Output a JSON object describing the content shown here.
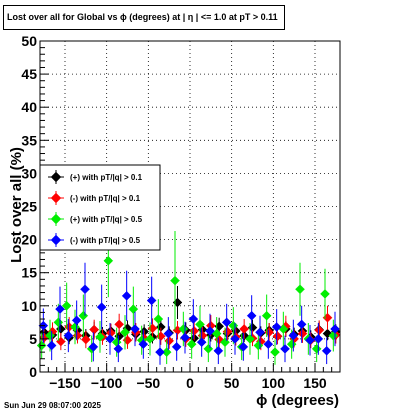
{
  "title": "Lost over all for Global vs ϕ (degrees) at |  η  | <= 1.0 at pT > 0.11",
  "date_stamp": "Sun Jun 29 08:07:00 2025",
  "colors": {
    "series_pos_01": "#000000",
    "series_neg_01": "#ff0000",
    "series_pos_05": "#00ee00",
    "series_neg_05": "#0000ff"
  },
  "chart_data": {
    "type": "scatter",
    "title": "Lost over all for Global vs ϕ (degrees) at |  η  | <= 1.0 at pT > 0.11",
    "xlabel": "ϕ (degrees)",
    "ylabel": "Lost over all (%)",
    "xlim": [
      -180,
      180
    ],
    "ylim": [
      0,
      50
    ],
    "grid": true,
    "legend_position": "middle-left",
    "x_ticks": [
      "−150",
      "−100",
      "−50",
      "0",
      "50",
      "100",
      "150"
    ],
    "x_tick_values": [
      -150,
      -100,
      -50,
      0,
      50,
      100,
      150
    ],
    "y_ticks": [
      "0",
      "5",
      "10",
      "15",
      "20",
      "25",
      "30",
      "35",
      "40",
      "45",
      "50"
    ],
    "y_tick_values": [
      0,
      5,
      10,
      15,
      20,
      25,
      30,
      35,
      40,
      45,
      50
    ],
    "series": [
      {
        "name": "(+) with pT/|q| > 0.1",
        "color": "#000000",
        "points": [
          [
            -175,
            6.0,
            1.0
          ],
          [
            -165,
            5.6,
            1.0
          ],
          [
            -155,
            6.5,
            1.2
          ],
          [
            -145,
            5.2,
            1.0
          ],
          [
            -135,
            6.3,
            1.1
          ],
          [
            -125,
            5.5,
            1.0
          ],
          [
            -115,
            6.4,
            1.2
          ],
          [
            -105,
            5.8,
            1.0
          ],
          [
            -95,
            6.2,
            1.1
          ],
          [
            -85,
            5.4,
            1.0
          ],
          [
            -75,
            6.6,
            1.2
          ],
          [
            -65,
            5.7,
            1.0
          ],
          [
            -55,
            6.1,
            1.1
          ],
          [
            -45,
            5.3,
            1.0
          ],
          [
            -35,
            6.8,
            1.3
          ],
          [
            -25,
            5.9,
            1.0
          ],
          [
            -15,
            10.5,
            2.5
          ],
          [
            -5,
            6.3,
            1.2
          ],
          [
            5,
            5.1,
            1.0
          ],
          [
            15,
            6.4,
            1.1
          ],
          [
            25,
            5.6,
            1.0
          ],
          [
            35,
            6.9,
            1.3
          ],
          [
            45,
            5.8,
            1.0
          ],
          [
            55,
            6.2,
            1.1
          ],
          [
            65,
            5.5,
            1.0
          ],
          [
            75,
            6.7,
            1.2
          ],
          [
            85,
            5.9,
            1.0
          ],
          [
            95,
            6.3,
            1.1
          ],
          [
            105,
            5.4,
            1.0
          ],
          [
            115,
            6.5,
            1.2
          ],
          [
            125,
            5.7,
            1.0
          ],
          [
            135,
            6.2,
            1.1
          ],
          [
            145,
            5.3,
            1.0
          ],
          [
            155,
            6.4,
            1.2
          ],
          [
            165,
            5.8,
            1.0
          ],
          [
            175,
            6.1,
            1.1
          ]
        ]
      },
      {
        "name": "(-) with pT/|q| > 0.1",
        "color": "#ff0000",
        "points": [
          [
            -175,
            5.2,
            1.2
          ],
          [
            -165,
            6.1,
            1.4
          ],
          [
            -155,
            4.6,
            1.3
          ],
          [
            -145,
            6.8,
            1.5
          ],
          [
            -135,
            5.5,
            1.2
          ],
          [
            -125,
            4.9,
            1.3
          ],
          [
            -115,
            6.4,
            1.5
          ],
          [
            -105,
            5.3,
            1.2
          ],
          [
            -95,
            5.9,
            1.4
          ],
          [
            -85,
            7.2,
            1.6
          ],
          [
            -75,
            4.8,
            1.3
          ],
          [
            -65,
            6.0,
            1.4
          ],
          [
            -55,
            5.1,
            1.2
          ],
          [
            -45,
            6.6,
            1.5
          ],
          [
            -35,
            5.4,
            1.3
          ],
          [
            -25,
            4.7,
            1.2
          ],
          [
            -15,
            6.3,
            1.4
          ],
          [
            -5,
            5.0,
            1.2
          ],
          [
            5,
            6.2,
            1.4
          ],
          [
            15,
            5.5,
            1.3
          ],
          [
            25,
            7.0,
            1.6
          ],
          [
            35,
            4.9,
            1.2
          ],
          [
            45,
            6.1,
            1.4
          ],
          [
            55,
            5.3,
            1.3
          ],
          [
            65,
            6.5,
            1.5
          ],
          [
            75,
            5.1,
            1.2
          ],
          [
            85,
            4.6,
            1.3
          ],
          [
            95,
            6.0,
            1.4
          ],
          [
            105,
            5.4,
            1.2
          ],
          [
            115,
            6.9,
            1.6
          ],
          [
            125,
            5.0,
            1.3
          ],
          [
            135,
            5.8,
            1.4
          ],
          [
            145,
            4.8,
            1.2
          ],
          [
            155,
            6.3,
            1.5
          ],
          [
            165,
            8.2,
            1.8
          ],
          [
            175,
            5.6,
            1.3
          ]
        ]
      },
      {
        "name": "(+) with pT/|q| > 0.5",
        "color": "#00ee00",
        "points": [
          [
            -178,
            4.0,
            2.0
          ],
          [
            -168,
            5.5,
            2.4
          ],
          [
            -158,
            7.5,
            2.8
          ],
          [
            -148,
            10.0,
            3.5
          ],
          [
            -138,
            6.8,
            2.6
          ],
          [
            -128,
            8.5,
            3.2
          ],
          [
            -118,
            3.5,
            2.0
          ],
          [
            -108,
            5.3,
            2.4
          ],
          [
            -98,
            16.8,
            5.5
          ],
          [
            -88,
            4.5,
            2.2
          ],
          [
            -78,
            6.0,
            2.6
          ],
          [
            -68,
            9.5,
            3.4
          ],
          [
            -58,
            4.8,
            2.2
          ],
          [
            -48,
            5.0,
            2.5
          ],
          [
            -38,
            8.0,
            3.0
          ],
          [
            -28,
            3.0,
            1.8
          ],
          [
            -18,
            13.8,
            7.5
          ],
          [
            -8,
            6.5,
            2.6
          ],
          [
            2,
            4.2,
            2.2
          ],
          [
            12,
            7.2,
            2.8
          ],
          [
            22,
            3.5,
            2.0
          ],
          [
            32,
            5.8,
            2.5
          ],
          [
            42,
            4.5,
            2.2
          ],
          [
            52,
            7.0,
            2.8
          ],
          [
            62,
            3.8,
            2.0
          ],
          [
            72,
            5.0,
            2.4
          ],
          [
            82,
            4.0,
            2.1
          ],
          [
            92,
            8.5,
            3.2
          ],
          [
            102,
            3.0,
            1.9
          ],
          [
            112,
            6.5,
            2.6
          ],
          [
            122,
            4.2,
            2.2
          ],
          [
            132,
            12.5,
            4.0
          ],
          [
            142,
            5.0,
            2.4
          ],
          [
            152,
            3.5,
            2.0
          ],
          [
            162,
            11.8,
            3.8
          ],
          [
            172,
            5.5,
            2.4
          ]
        ]
      },
      {
        "name": "(-) with pT/|q| > 0.5",
        "color": "#0000ff",
        "points": [
          [
            -176,
            7.0,
            2.6
          ],
          [
            -166,
            4.0,
            2.2
          ],
          [
            -156,
            9.5,
            3.4
          ],
          [
            -146,
            5.5,
            2.5
          ],
          [
            -136,
            7.8,
            3.0
          ],
          [
            -126,
            12.5,
            4.0
          ],
          [
            -116,
            3.8,
            2.2
          ],
          [
            -106,
            9.8,
            3.4
          ],
          [
            -96,
            5.0,
            2.4
          ],
          [
            -86,
            3.5,
            2.0
          ],
          [
            -76,
            11.5,
            3.8
          ],
          [
            -66,
            6.5,
            2.6
          ],
          [
            -56,
            4.2,
            2.2
          ],
          [
            -46,
            10.8,
            3.6
          ],
          [
            -36,
            3.0,
            1.9
          ],
          [
            -26,
            5.8,
            2.5
          ],
          [
            -16,
            3.8,
            2.1
          ],
          [
            -6,
            5.2,
            2.4
          ],
          [
            4,
            8.0,
            3.0
          ],
          [
            14,
            4.5,
            2.2
          ],
          [
            24,
            6.2,
            2.6
          ],
          [
            34,
            3.2,
            2.0
          ],
          [
            44,
            7.5,
            2.8
          ],
          [
            54,
            5.0,
            2.4
          ],
          [
            64,
            3.8,
            2.1
          ],
          [
            74,
            8.5,
            3.1
          ],
          [
            84,
            6.0,
            2.5
          ],
          [
            94,
            4.2,
            2.2
          ],
          [
            104,
            6.8,
            2.7
          ],
          [
            114,
            3.5,
            2.0
          ],
          [
            124,
            5.5,
            2.4
          ],
          [
            134,
            7.2,
            2.8
          ],
          [
            144,
            4.8,
            2.3
          ],
          [
            154,
            5.0,
            2.4
          ],
          [
            164,
            3.2,
            2.0
          ],
          [
            174,
            6.5,
            2.6
          ]
        ]
      }
    ]
  }
}
